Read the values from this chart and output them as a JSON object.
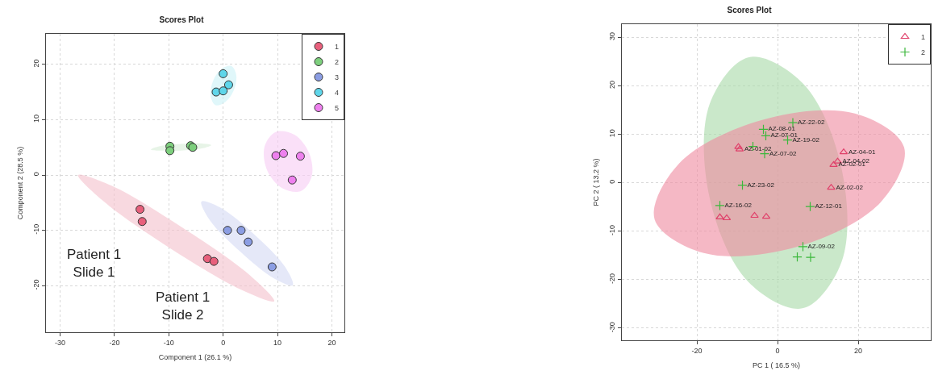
{
  "chart_data": [
    {
      "type": "scatter",
      "title": "Scores Plot",
      "xlabel": "Component 1 (26.1 %)",
      "ylabel": "Component 2 (28.5 %)",
      "xlim": [
        -32.6,
        22.3
      ],
      "ylim": [
        -28.4,
        25.5
      ],
      "xticks": [
        -30,
        -20,
        -10,
        0,
        10,
        20
      ],
      "yticks": [
        -20,
        -10,
        0,
        10,
        20
      ],
      "grid": true,
      "legend": "top right",
      "annotations": [
        "Patient 1\nSlide 1",
        "Patient 1\nSlide 2"
      ],
      "series": [
        {
          "type": "area",
          "color": "#f5c1cc",
          "x": [
            9.4,
            4.9,
            -7.5,
            -20.6,
            -26.7,
            -22.2,
            -9.8,
            3.3,
            9.4
          ],
          "values": [
            -22.8,
            -18.1,
            -9.5,
            -1.9,
            0.0,
            -4.6,
            -13.2,
            -20.7,
            -22.8
          ]
        },
        {
          "type": "area",
          "color": "#d8eed8",
          "x": [
            -2.2,
            -3.9,
            -7.8,
            -11.7,
            -13.3,
            -11.7,
            -7.8,
            -3.9,
            -2.2
          ],
          "values": [
            5.4,
            5.7,
            5.6,
            5.2,
            4.6,
            4.4,
            4.4,
            4.8,
            5.4
          ]
        },
        {
          "type": "area",
          "color": "#d4daf5",
          "x": [
            12.8,
            11.4,
            5.8,
            -0.5,
            -4.0,
            -2.5,
            3.1,
            9.4,
            12.8
          ],
          "values": [
            -19.9,
            -16.6,
            -10.8,
            -5.9,
            -4.8,
            -8.1,
            -13.8,
            -18.7,
            -19.9
          ]
        },
        {
          "type": "area",
          "color": "#cdf3f8",
          "x": [
            1.5,
            2.4,
            2.0,
            0.4,
            -1.4,
            -2.3,
            -1.9,
            -0.3,
            1.5
          ],
          "values": [
            19.7,
            18.1,
            15.4,
            13.2,
            12.6,
            14.2,
            16.9,
            19.2,
            19.7
          ]
        },
        {
          "type": "area",
          "color": "#f8cdf5",
          "x": [
            14.3,
            16.3,
            15.8,
            13.1,
            9.7,
            7.6,
            8.1,
            10.9,
            14.3
          ],
          "values": [
            -2.9,
            -0.2,
            4.0,
            7.3,
            7.8,
            5.1,
            0.8,
            -2.4,
            -2.9
          ]
        },
        {
          "name": "1",
          "color": "#e8607c",
          "marker": "circle",
          "x": [
            -15.3,
            -14.9,
            -2.9,
            -1.7
          ],
          "values": [
            -6.2,
            -8.4,
            -15.1,
            -15.6
          ]
        },
        {
          "name": "2",
          "color": "#7dcf7d",
          "marker": "circle",
          "x": [
            -9.8,
            -9.8,
            -6.0,
            -5.6
          ],
          "values": [
            5.2,
            4.4,
            5.3,
            5.0
          ]
        },
        {
          "name": "3",
          "color": "#8b9de3",
          "marker": "circle",
          "x": [
            0.8,
            3.3,
            4.6,
            9.0
          ],
          "values": [
            -10.0,
            -10.0,
            -12.1,
            -16.6
          ]
        },
        {
          "name": "4",
          "color": "#5fd6ea",
          "marker": "circle",
          "x": [
            0.0,
            1.0,
            -1.3,
            0.0
          ],
          "values": [
            18.3,
            16.3,
            15.0,
            15.2
          ]
        },
        {
          "name": "5",
          "color": "#ee80ee",
          "marker": "circle",
          "x": [
            9.7,
            11.1,
            14.2,
            12.7
          ],
          "values": [
            3.5,
            3.9,
            3.4,
            -0.9
          ]
        }
      ]
    },
    {
      "type": "scatter",
      "title": "Scores Plot",
      "xlabel": "PC 1 ( 16.5 %)",
      "ylabel": "PC 2 ( 13.2 %)",
      "xlim": [
        -38.6,
        38
      ],
      "ylim": [
        -32.5,
        32.7
      ],
      "xticks": [
        -20,
        0,
        20
      ],
      "yticks": [
        -30,
        -20,
        -10,
        0,
        10,
        20,
        30
      ],
      "grid": true,
      "legend": "top right",
      "series": [
        {
          "type": "area",
          "color": "#a8daa8",
          "x": [
            6.2,
            15.9,
            15.9,
            6.4,
            -7.1,
            -16.8,
            -16.9,
            -7.3,
            6.2
          ],
          "values": [
            -25.9,
            -16.3,
            2.9,
            20.4,
            25.9,
            16.3,
            -2.9,
            -20.4,
            -25.9
          ]
        },
        {
          "type": "area",
          "color": "#f08aa0",
          "x": [
            31.4,
            19.2,
            -4.0,
            -24.5,
            -30.5,
            -18.3,
            4.9,
            25.5,
            31.4
          ],
          "values": [
            7.3,
            14.3,
            12.9,
            3.9,
            -7.5,
            -14.5,
            -13.2,
            -4.1,
            7.3
          ]
        },
        {
          "name": "1",
          "color": "#e0406a",
          "marker": "triangle",
          "x": [
            -9.7,
            -9.4,
            16.4,
            14.9,
            13.9,
            13.3,
            -14.3,
            -12.6,
            -5.7,
            -2.8
          ],
          "values": [
            7.4,
            6.9,
            6.3,
            4.4,
            3.7,
            -1.0,
            -7.1,
            -7.3,
            -6.8,
            -7.0
          ],
          "value_labels": [
            null,
            "AZ-01-02",
            "AZ-04-01",
            "AZ-04-02",
            "AZ-02-01",
            "AZ-02-02",
            null,
            null,
            null,
            null
          ]
        },
        {
          "name": "2",
          "color": "#3cb83c",
          "marker": "cross",
          "x": [
            3.8,
            -3.5,
            -2.9,
            2.5,
            -6.1,
            -3.2,
            -8.7,
            -14.3,
            8.1,
            6.3,
            4.9,
            8.2
          ],
          "values": [
            12.4,
            11.0,
            9.7,
            8.8,
            7.5,
            6.0,
            -0.5,
            -4.7,
            -4.9,
            -13.2,
            -15.3,
            -15.4
          ],
          "value_labels": [
            "AZ-22-02",
            "AZ-08-01",
            "AZ-07-01",
            "AZ-19-02",
            null,
            "AZ-07-02",
            "AZ-23-02",
            "AZ-16-02",
            "AZ-12-01",
            "AZ-09-02",
            null,
            null
          ]
        }
      ]
    }
  ]
}
